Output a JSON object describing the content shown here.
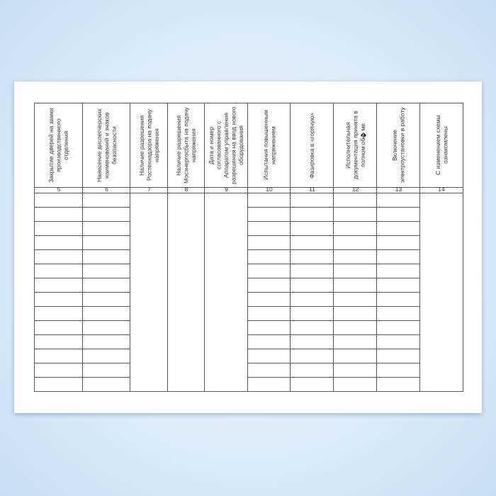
{
  "form": {
    "columns": [
      {
        "number": "5",
        "header": "Закрытие дверей на замки производственного отделения",
        "ruled": true
      },
      {
        "number": "6",
        "header": "Нанесение диспетчерских наименований и знаков безопасности",
        "ruled": true
      },
      {
        "number": "7",
        "header": "Наличие разрешения Ростехнадзора на подачу напряжения",
        "ruled": false
      },
      {
        "number": "8",
        "header": "Наличие разрешения Мосэнергосбыта на подачу напряжения",
        "ruled": false
      },
      {
        "number": "9",
        "header": "Дата и номер согласованного с Аппаратом управления разрешения на ввод нового оборудования",
        "ruled": false
      },
      {
        "number": "10",
        "header": "Испытания повышенным напряжением",
        "ruled": true
      },
      {
        "number": "11",
        "header": "Фазировка в «горячую»",
        "ruled": true
      },
      {
        "number": "12",
        "header": "Исполнительная документация принята в полном об�ме",
        "ruled": true
      },
      {
        "number": "13",
        "header": "Включение электроустановки в работу",
        "ruled": true
      },
      {
        "number": "14",
        "header": "С изменением схемы ознакомлены",
        "ruled": false
      }
    ],
    "row_count": 14
  }
}
